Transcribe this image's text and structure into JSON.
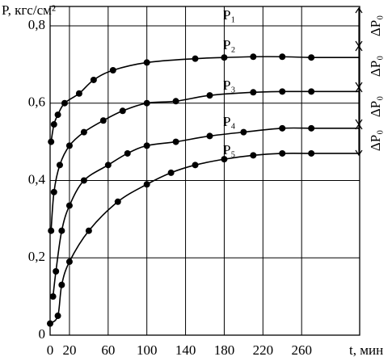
{
  "chart_data": {
    "type": "line",
    "y_label": "P, кгс/см²",
    "x_label": "t, мин",
    "xlim": [
      0,
      320
    ],
    "ylim": [
      0,
      0.85
    ],
    "xticks": [
      0,
      20,
      60,
      100,
      140,
      180,
      220,
      260
    ],
    "yticks": [
      {
        "value": 0,
        "label": "0"
      },
      {
        "value": 0.2,
        "label": "0,2"
      },
      {
        "value": 0.4,
        "label": "0,4"
      },
      {
        "value": 0.6,
        "label": "0,6"
      },
      {
        "value": 0.8,
        "label": "0,8"
      }
    ],
    "grid": true,
    "top_label": "P₁",
    "delta_label": [
      "ΔP₀",
      "ΔP₀",
      "ΔP₀",
      "ΔP₀"
    ],
    "series": [
      {
        "name": "P₂",
        "color": "#000",
        "x": [
          1,
          4,
          8,
          15,
          30,
          45,
          65,
          100,
          150,
          180,
          210,
          240,
          270
        ],
        "values": [
          0.5,
          0.545,
          0.57,
          0.6,
          0.625,
          0.66,
          0.685,
          0.705,
          0.715,
          0.718,
          0.72,
          0.72,
          0.718
        ]
      },
      {
        "name": "P₃",
        "color": "#000",
        "x": [
          1,
          4,
          10,
          20,
          35,
          55,
          75,
          100,
          130,
          165,
          210,
          240,
          270
        ],
        "values": [
          0.27,
          0.37,
          0.44,
          0.49,
          0.525,
          0.555,
          0.58,
          0.6,
          0.605,
          0.62,
          0.628,
          0.63,
          0.63
        ]
      },
      {
        "name": "P₄",
        "color": "#000",
        "x": [
          3,
          6,
          12,
          20,
          35,
          60,
          80,
          100,
          130,
          165,
          200,
          240,
          270
        ],
        "values": [
          0.1,
          0.165,
          0.27,
          0.335,
          0.4,
          0.44,
          0.47,
          0.49,
          0.5,
          0.515,
          0.525,
          0.535,
          0.535
        ]
      },
      {
        "name": "P₅",
        "color": "#000",
        "x": [
          0,
          8,
          12,
          20,
          40,
          70,
          100,
          125,
          150,
          180,
          210,
          240,
          270
        ],
        "values": [
          0.03,
          0.05,
          0.13,
          0.19,
          0.27,
          0.345,
          0.39,
          0.42,
          0.44,
          0.455,
          0.465,
          0.47,
          0.47
        ]
      }
    ]
  }
}
